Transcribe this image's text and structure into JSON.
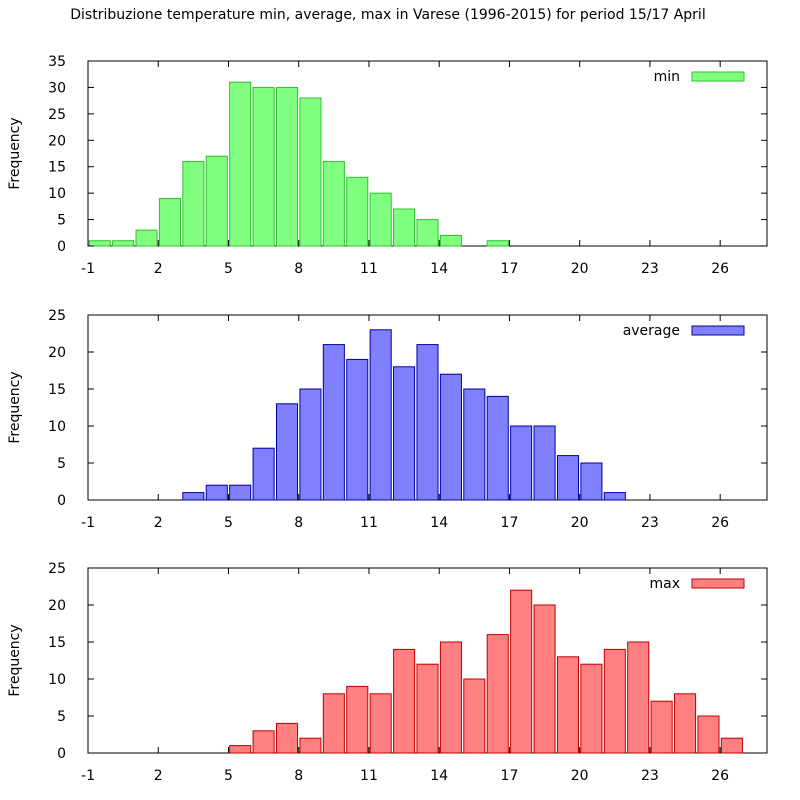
{
  "title": "Distribuzione temperature min, average, max in Varese (1996-2015) for period 15/17 April",
  "chart_data": [
    {
      "type": "bar",
      "series_name": "min",
      "color": "#80ff80",
      "edge_color": "#30c030",
      "ylabel": "Frequency",
      "xlim": [
        -1,
        28
      ],
      "ylim": [
        0,
        35
      ],
      "xticks": [
        -1,
        2,
        5,
        8,
        11,
        14,
        17,
        20,
        23,
        26
      ],
      "yticks": [
        0,
        5,
        10,
        15,
        20,
        25,
        30,
        35
      ],
      "bin_width": 1,
      "x": [
        -0.5,
        0.5,
        1.5,
        2.5,
        3.5,
        4.5,
        5.5,
        6.5,
        7.5,
        8.5,
        9.5,
        10.5,
        11.5,
        12.5,
        13.5,
        14.5,
        15.5,
        16.5
      ],
      "values": [
        1,
        1,
        3,
        9,
        16,
        17,
        31,
        30,
        30,
        28,
        16,
        13,
        10,
        7,
        5,
        2,
        0,
        1
      ]
    },
    {
      "type": "bar",
      "series_name": "average",
      "color": "#8080ff",
      "edge_color": "#0000a0",
      "ylabel": "Frequency",
      "xlim": [
        -1,
        28
      ],
      "ylim": [
        0,
        25
      ],
      "xticks": [
        -1,
        2,
        5,
        8,
        11,
        14,
        17,
        20,
        23,
        26
      ],
      "yticks": [
        0,
        5,
        10,
        15,
        20,
        25
      ],
      "bin_width": 1,
      "x": [
        3.5,
        4.5,
        5.5,
        6.5,
        7.5,
        8.5,
        9.5,
        10.5,
        11.5,
        12.5,
        13.5,
        14.5,
        15.5,
        16.5,
        17.5,
        18.5,
        19.5,
        20.5,
        21.5
      ],
      "values": [
        1,
        2,
        2,
        7,
        13,
        15,
        21,
        19,
        23,
        18,
        21,
        17,
        15,
        14,
        10,
        10,
        6,
        5,
        1
      ]
    },
    {
      "type": "bar",
      "series_name": "max",
      "color": "#ff8080",
      "edge_color": "#c00000",
      "ylabel": "Frequency",
      "xlim": [
        -1,
        28
      ],
      "ylim": [
        0,
        25
      ],
      "xticks": [
        -1,
        2,
        5,
        8,
        11,
        14,
        17,
        20,
        23,
        26
      ],
      "yticks": [
        0,
        5,
        10,
        15,
        20,
        25
      ],
      "bin_width": 1,
      "x": [
        5.5,
        6.5,
        7.5,
        8.5,
        9.5,
        10.5,
        11.5,
        12.5,
        13.5,
        14.5,
        15.5,
        16.5,
        17.5,
        18.5,
        19.5,
        20.5,
        21.5,
        22.5,
        23.5,
        24.5,
        25.5,
        26.5
      ],
      "values": [
        1,
        3,
        4,
        2,
        8,
        9,
        8,
        14,
        12,
        15,
        10,
        16,
        22,
        20,
        13,
        12,
        14,
        15,
        7,
        8,
        5,
        2
      ]
    }
  ]
}
